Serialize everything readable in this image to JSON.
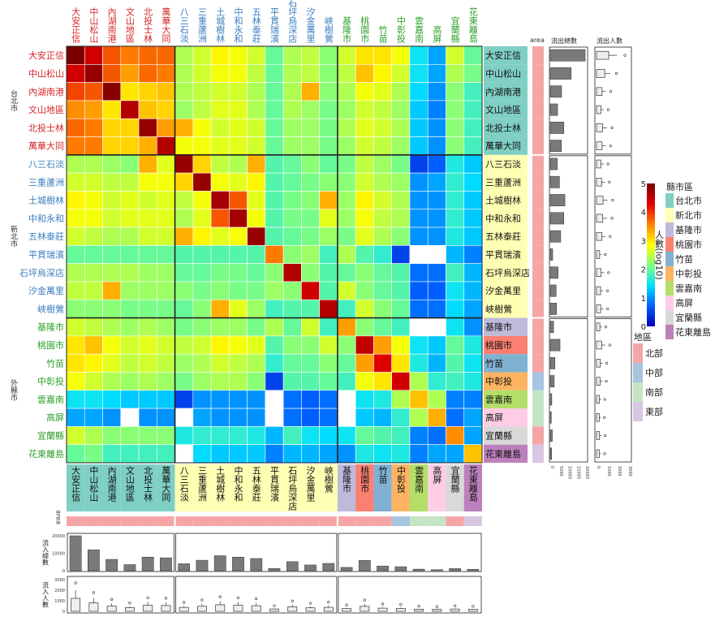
{
  "chart_data": {
    "type": "heatmap",
    "title": "",
    "regions": [
      "大安正信",
      "中山松山",
      "內湖南港",
      "文山地區",
      "北投士林",
      "萬華大同",
      "八三石淡",
      "三重蘆洲",
      "土城樹林",
      "中和永和",
      "五林泰莊",
      "平貫瑞濱",
      "石坪烏深店",
      "汐金萬里",
      "峽樹鶯",
      "基隆市",
      "桃園市",
      "竹苗",
      "中彰投",
      "雲嘉南",
      "高屏",
      "宜蘭縣",
      "花東離島"
    ],
    "region_county": [
      "台北市",
      "台北市",
      "台北市",
      "台北市",
      "台北市",
      "台北市",
      "新北市",
      "新北市",
      "新北市",
      "新北市",
      "新北市",
      "新北市",
      "新北市",
      "新北市",
      "新北市",
      "基隆市",
      "桃園市",
      "竹苗",
      "中彰投",
      "雲嘉南",
      "高屏",
      "宜蘭縣",
      "花東離島"
    ],
    "region_area": [
      "北部",
      "北部",
      "北部",
      "北部",
      "北部",
      "北部",
      "北部",
      "北部",
      "北部",
      "北部",
      "北部",
      "北部",
      "北部",
      "北部",
      "北部",
      "北部",
      "北部",
      "北部",
      "中部",
      "南部",
      "南部",
      "北部",
      "東部"
    ],
    "groups": [
      "台北市",
      "新北市",
      "外縣市"
    ],
    "matrix": [
      [
        5.0,
        4.4,
        3.8,
        3.6,
        3.7,
        3.7,
        2.4,
        2.6,
        2.9,
        2.8,
        2.6,
        2.0,
        2.4,
        2.5,
        2.2,
        2.6,
        3.0,
        3.0,
        2.8,
        1.5,
        1.1,
        2.6,
        2.0
      ],
      [
        4.4,
        4.8,
        3.8,
        3.4,
        3.7,
        3.6,
        2.4,
        2.6,
        2.8,
        2.8,
        2.5,
        2.0,
        2.4,
        2.5,
        2.2,
        2.5,
        3.2,
        2.9,
        2.6,
        1.5,
        1.1,
        2.4,
        2.1
      ],
      [
        3.9,
        3.8,
        4.9,
        3.0,
        3.1,
        3.2,
        2.4,
        2.5,
        2.6,
        2.6,
        2.4,
        2.0,
        2.4,
        3.3,
        2.2,
        2.4,
        2.8,
        2.7,
        2.4,
        1.4,
        1.0,
        2.2,
        1.8
      ],
      [
        3.5,
        3.4,
        3.0,
        4.6,
        3.2,
        3.1,
        2.3,
        2.5,
        2.7,
        2.7,
        2.4,
        2.0,
        2.4,
        2.3,
        2.1,
        2.3,
        2.6,
        2.5,
        2.3,
        1.3,
        0.9,
        2.2,
        1.8
      ],
      [
        3.7,
        3.6,
        3.1,
        3.1,
        4.8,
        3.4,
        3.3,
        2.8,
        2.6,
        2.7,
        2.6,
        2.0,
        2.3,
        2.3,
        2.1,
        2.4,
        2.7,
        2.6,
        2.4,
        1.3,
        1.0,
        2.2,
        1.8
      ],
      [
        3.6,
        3.6,
        3.1,
        3.1,
        3.3,
        4.6,
        2.8,
        2.8,
        2.7,
        2.7,
        2.6,
        2.0,
        2.3,
        2.3,
        2.1,
        2.3,
        2.6,
        2.5,
        2.3,
        1.3,
        1.0,
        2.2,
        1.8
      ],
      [
        2.4,
        2.4,
        2.3,
        2.2,
        3.3,
        2.7,
        4.8,
        3.1,
        2.5,
        2.4,
        3.3,
        1.9,
        2.0,
        2.2,
        2.0,
        2.1,
        2.5,
        2.3,
        2.1,
        0.5,
        0.7,
        1.6,
        1.3
      ],
      [
        2.6,
        2.6,
        2.5,
        2.5,
        2.8,
        2.8,
        3.1,
        4.8,
        2.8,
        2.7,
        2.9,
        1.9,
        2.0,
        2.1,
        2.2,
        2.2,
        2.6,
        2.4,
        2.3,
        1.0,
        1.1,
        1.7,
        1.4
      ],
      [
        2.9,
        2.8,
        2.6,
        2.7,
        2.6,
        2.7,
        2.5,
        2.8,
        4.7,
        3.8,
        2.7,
        1.9,
        2.1,
        2.2,
        3.3,
        2.3,
        2.9,
        2.6,
        2.4,
        1.0,
        1.0,
        1.7,
        1.3
      ],
      [
        2.8,
        2.8,
        2.6,
        2.7,
        2.7,
        2.7,
        2.4,
        2.7,
        3.8,
        4.7,
        2.8,
        1.9,
        2.1,
        2.1,
        2.7,
        2.3,
        2.8,
        2.5,
        2.4,
        1.0,
        1.0,
        1.7,
        1.3
      ],
      [
        2.6,
        2.5,
        2.4,
        2.4,
        2.6,
        2.6,
        3.3,
        2.9,
        2.7,
        2.8,
        4.8,
        1.9,
        2.0,
        2.1,
        2.3,
        2.1,
        2.7,
        2.4,
        2.2,
        1.0,
        1.0,
        1.6,
        1.3
      ],
      [
        2.0,
        2.0,
        2.0,
        2.0,
        2.0,
        2.0,
        1.9,
        1.9,
        1.9,
        1.9,
        1.9,
        3.6,
        2.2,
        2.3,
        1.8,
        2.4,
        1.9,
        1.7,
        0.5,
        0,
        0,
        1.2,
        0.9
      ],
      [
        2.4,
        2.4,
        2.4,
        2.4,
        2.3,
        2.3,
        2.0,
        2.0,
        2.1,
        2.1,
        2.0,
        2.2,
        4.6,
        2.2,
        1.9,
        2.0,
        2.2,
        2.0,
        1.9,
        0.8,
        0.8,
        1.8,
        1.2
      ],
      [
        2.5,
        2.5,
        3.3,
        2.3,
        2.3,
        2.3,
        2.2,
        2.1,
        2.2,
        2.1,
        2.1,
        2.3,
        2.2,
        4.4,
        1.9,
        2.6,
        2.2,
        2.0,
        1.9,
        0.7,
        0.7,
        1.5,
        1.2
      ],
      [
        2.2,
        2.2,
        2.2,
        2.1,
        2.1,
        2.1,
        2.0,
        2.2,
        3.3,
        2.7,
        2.3,
        1.8,
        1.9,
        1.9,
        4.6,
        1.8,
        2.6,
        2.2,
        2.0,
        0.8,
        0.8,
        1.4,
        1.1
      ],
      [
        2.6,
        2.5,
        2.4,
        2.3,
        2.4,
        2.3,
        2.1,
        2.2,
        2.3,
        2.3,
        2.1,
        2.4,
        2.0,
        2.6,
        1.8,
        3.4,
        2.2,
        2.0,
        1.8,
        0,
        0,
        1.5,
        1.0
      ],
      [
        3.0,
        3.2,
        2.8,
        2.6,
        2.7,
        2.6,
        2.5,
        2.6,
        2.9,
        2.8,
        2.7,
        1.9,
        2.2,
        2.2,
        2.6,
        2.2,
        4.5,
        3.4,
        2.8,
        1.5,
        1.3,
        2.0,
        1.6
      ],
      [
        3.0,
        2.9,
        2.7,
        2.5,
        2.6,
        2.5,
        2.3,
        2.4,
        2.6,
        2.5,
        2.4,
        1.7,
        2.0,
        2.0,
        2.2,
        2.0,
        3.4,
        4.3,
        3.0,
        1.6,
        1.2,
        1.9,
        1.5
      ],
      [
        2.8,
        2.6,
        2.4,
        2.3,
        2.4,
        2.3,
        2.1,
        2.3,
        2.4,
        2.4,
        2.2,
        0.5,
        1.9,
        1.9,
        2.0,
        1.8,
        2.8,
        3.0,
        4.4,
        2.4,
        1.7,
        1.8,
        1.6
      ],
      [
        1.5,
        1.5,
        1.4,
        1.3,
        1.3,
        1.3,
        0.5,
        1.0,
        1.0,
        1.0,
        1.0,
        0,
        0.8,
        0.7,
        0.8,
        0,
        1.5,
        1.6,
        2.4,
        3.2,
        2.4,
        0.9,
        0.9
      ],
      [
        1.1,
        1.1,
        1.0,
        0,
        1.0,
        1.0,
        0,
        1.1,
        1.0,
        1.0,
        1.0,
        0,
        0.8,
        0.7,
        0.8,
        0,
        1.3,
        1.2,
        1.7,
        2.4,
        3.3,
        0.8,
        1.1
      ],
      [
        2.6,
        2.4,
        2.2,
        2.2,
        2.2,
        2.2,
        1.6,
        1.7,
        1.7,
        1.7,
        1.6,
        1.2,
        1.8,
        1.5,
        1.4,
        1.5,
        2.0,
        1.9,
        1.8,
        0.9,
        0.8,
        3.5,
        1.1
      ],
      [
        2.0,
        2.1,
        1.8,
        1.8,
        1.8,
        1.8,
        0,
        1.4,
        1.3,
        1.3,
        1.3,
        0.9,
        1.2,
        1.2,
        1.1,
        1.0,
        1.6,
        1.5,
        1.6,
        0.9,
        1.1,
        1.1,
        3.2
      ]
    ],
    "outflow_total": [
      20000,
      12000,
      6500,
      4200,
      7800,
      6400,
      4000,
      5300,
      8400,
      7800,
      6000,
      1400,
      4500,
      3400,
      3600,
      1900,
      5600,
      2700,
      2300,
      900,
      600,
      1200,
      800
    ],
    "inflow_total": [
      20000,
      12000,
      6500,
      3500,
      7800,
      7400,
      4000,
      6000,
      8600,
      7800,
      7000,
      1300,
      5200,
      3300,
      4200,
      1900,
      5900,
      2700,
      2300,
      900,
      600,
      1200,
      800
    ],
    "outflow_ticks": [
      "0",
      "5000",
      "10000",
      "15000",
      "20000"
    ],
    "boxplot_ticks": [
      "0",
      "1000",
      "2000",
      "3000"
    ],
    "inflow_ticks": [
      "0",
      "10000",
      "20000"
    ],
    "inflow_box_ticks": [
      "0",
      "1000",
      "2000",
      "3000"
    ],
    "color_scale": {
      "min": 0,
      "max": 5,
      "ticks": [
        "0",
        "1",
        "2",
        "3",
        "4",
        "5"
      ],
      "label": "人數(log10)",
      "colors": [
        "#0000b8",
        "#0060ff",
        "#00e0ff",
        "#80ff80",
        "#ffff00",
        "#ff8000",
        "#e00000",
        "#7a0000"
      ]
    },
    "county_legend": {
      "title": "縣市區",
      "items": [
        {
          "name": "台北市",
          "color": "#7fcfc4"
        },
        {
          "name": "新北市",
          "color": "#ffffb3"
        },
        {
          "name": "基隆市",
          "color": "#bebada"
        },
        {
          "name": "桃園市",
          "color": "#fb8072"
        },
        {
          "name": "竹苗",
          "color": "#80b1d3"
        },
        {
          "name": "中彰投",
          "color": "#fdb462"
        },
        {
          "name": "雲嘉南",
          "color": "#b3de69"
        },
        {
          "name": "高屏",
          "color": "#fccde5"
        },
        {
          "name": "宜蘭縣",
          "color": "#d9d9d9"
        },
        {
          "name": "花東離島",
          "color": "#bc80bd"
        }
      ]
    },
    "area_legend": {
      "title": "地區",
      "items": [
        {
          "name": "北部",
          "color": "#f4a6a6"
        },
        {
          "name": "中部",
          "color": "#a7c4e0"
        },
        {
          "name": "南部",
          "color": "#c5e4c5"
        },
        {
          "name": "東部",
          "color": "#d9c6e3"
        }
      ]
    },
    "labels": {
      "area": "area",
      "outflow_total": "流出總數",
      "outflow_people": "流出人數",
      "inflow_total": "流入總數",
      "inflow_people": "流入人數"
    }
  }
}
